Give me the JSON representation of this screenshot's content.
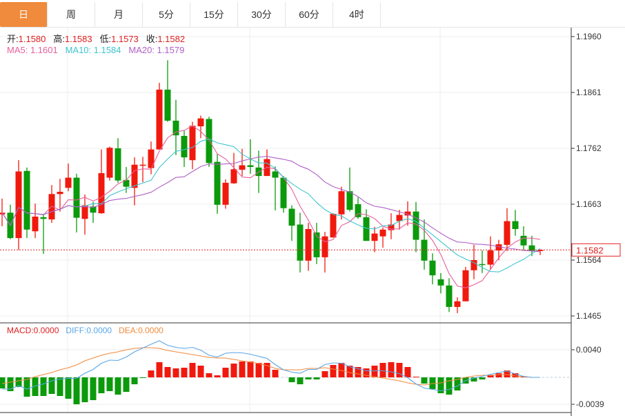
{
  "tabs": [
    {
      "label": "日",
      "active": true
    },
    {
      "label": "周"
    },
    {
      "label": "月"
    },
    {
      "label": "5分"
    },
    {
      "label": "15分"
    },
    {
      "label": "30分"
    },
    {
      "label": "60分"
    },
    {
      "label": "4时"
    }
  ],
  "ohlc_legend": {
    "open_label": "开:",
    "open": "1.1580",
    "high_label": "高:",
    "high": "1.1583",
    "low_label": "低:",
    "low": "1.1573",
    "close_label": "收:",
    "close": "1.1582"
  },
  "ma_legend": {
    "ma5": "MA5: 1.1601",
    "ma10": "MA10: 1.1584",
    "ma20": "MA20: 1.1579"
  },
  "macd_legend": {
    "macd": "MACD:0.0000",
    "diff": "DIFF:0.0000",
    "dea": "DEA:0.0000"
  },
  "colors": {
    "up": "#f0190e",
    "down": "#0b9a0b",
    "accent": "#f08a3c",
    "ma5": "#e6609c",
    "ma10": "#3fc4d0",
    "ma20": "#b060c6",
    "diff": "#5aa6e6",
    "dea": "#f08a3c",
    "last_price": "#e02020"
  },
  "chart_data": [
    {
      "type": "candlestick",
      "ylim": [
        1.1465,
        1.196
      ],
      "yticks": [
        "1.1960",
        "1.1861",
        "1.1762",
        "1.1663",
        "1.1564",
        "1.1465"
      ],
      "last_price": "1.1582",
      "grid": true,
      "ma_periods": [
        5,
        10,
        20
      ],
      "open": [
        1.1645,
        1.1648,
        1.1603,
        1.1722,
        1.1615,
        1.164,
        1.1636,
        1.1681,
        1.1692,
        1.171,
        1.1637,
        1.1659,
        1.1647,
        1.171,
        1.1762,
        1.1706,
        1.1692,
        1.1732,
        1.1727,
        1.176,
        1.1866,
        1.1811,
        1.1784,
        1.1741,
        1.1801,
        1.1814,
        1.1738,
        1.1662,
        1.17,
        1.1724,
        1.1732,
        1.1728,
        1.1713,
        1.1721,
        1.171,
        1.1655,
        1.1627,
        1.1563,
        1.1613,
        1.1569,
        1.1604,
        1.1645,
        1.1686,
        1.1663,
        1.164,
        1.1598,
        1.1606,
        1.1617,
        1.1633,
        1.1643,
        1.165,
        1.16,
        1.1563,
        1.153,
        1.1519,
        1.1481,
        1.1491,
        1.1546,
        1.1557,
        1.1556,
        1.1581,
        1.1591,
        1.1633,
        1.1607,
        1.159,
        1.158
      ],
      "high": [
        1.1673,
        1.1662,
        1.1741,
        1.1728,
        1.1664,
        1.1646,
        1.1697,
        1.1708,
        1.1735,
        1.1717,
        1.168,
        1.1667,
        1.176,
        1.1765,
        1.178,
        1.1729,
        1.1746,
        1.1747,
        1.1774,
        1.1878,
        1.1918,
        1.1848,
        1.1793,
        1.1809,
        1.182,
        1.1818,
        1.1752,
        1.1707,
        1.1754,
        1.1761,
        1.1778,
        1.1758,
        1.176,
        1.173,
        1.1713,
        1.1661,
        1.1648,
        1.163,
        1.163,
        1.1614,
        1.1647,
        1.1694,
        1.1728,
        1.1675,
        1.1654,
        1.1623,
        1.1622,
        1.1647,
        1.1653,
        1.1668,
        1.1667,
        1.1636,
        1.1576,
        1.1541,
        1.1532,
        1.1498,
        1.1552,
        1.1591,
        1.1581,
        1.1606,
        1.16,
        1.1656,
        1.1653,
        1.1624,
        1.1607,
        1.1583
      ],
      "low": [
        1.1624,
        1.1601,
        1.1582,
        1.1603,
        1.1603,
        1.1575,
        1.163,
        1.165,
        1.1686,
        1.1613,
        1.1609,
        1.163,
        1.1646,
        1.1705,
        1.1701,
        1.1683,
        1.1661,
        1.1702,
        1.1716,
        1.176,
        1.1809,
        1.175,
        1.1729,
        1.1725,
        1.178,
        1.1729,
        1.1646,
        1.1655,
        1.1699,
        1.1713,
        1.1717,
        1.1683,
        1.1713,
        1.1652,
        1.1648,
        1.1598,
        1.1542,
        1.1545,
        1.1557,
        1.1542,
        1.1604,
        1.1636,
        1.165,
        1.1637,
        1.1598,
        1.1578,
        1.1586,
        1.1601,
        1.1618,
        1.1625,
        1.1578,
        1.1547,
        1.1521,
        1.1505,
        1.1472,
        1.147,
        1.1491,
        1.153,
        1.1541,
        1.1547,
        1.1564,
        1.158,
        1.1607,
        1.1582,
        1.1571,
        1.1573
      ],
      "close": [
        1.1648,
        1.1603,
        1.1721,
        1.1618,
        1.1641,
        1.1637,
        1.1681,
        1.1685,
        1.171,
        1.1639,
        1.1661,
        1.1648,
        1.1718,
        1.1763,
        1.1705,
        1.1694,
        1.1733,
        1.1733,
        1.176,
        1.1866,
        1.1811,
        1.1785,
        1.1746,
        1.1802,
        1.1815,
        1.1736,
        1.1662,
        1.1701,
        1.1725,
        1.1732,
        1.1729,
        1.1713,
        1.1743,
        1.171,
        1.1656,
        1.1625,
        1.1563,
        1.1619,
        1.1569,
        1.1606,
        1.1646,
        1.1686,
        1.1653,
        1.164,
        1.1598,
        1.1611,
        1.1618,
        1.1627,
        1.1644,
        1.165,
        1.16,
        1.1563,
        1.1537,
        1.1519,
        1.1481,
        1.1491,
        1.1546,
        1.1564,
        1.1556,
        1.1581,
        1.1592,
        1.1633,
        1.1619,
        1.159,
        1.158,
        1.1582
      ]
    },
    {
      "type": "macd",
      "yticks": [
        "0.0040",
        "-0.0039"
      ],
      "macd": [
        -0.0016,
        -0.002,
        -0.0014,
        -0.0028,
        -0.0027,
        -0.0027,
        -0.0024,
        -0.0027,
        -0.0031,
        -0.0039,
        -0.0036,
        -0.0033,
        -0.0023,
        -0.002,
        -0.0025,
        -0.0021,
        -0.001,
        -0.0001,
        0.001,
        0.0022,
        0.0015,
        0.0013,
        0.0014,
        0.0021,
        0.0017,
        0.0006,
        0.0003,
        0.0014,
        0.002,
        0.0023,
        0.0023,
        0.0021,
        0.0021,
        0.0011,
        0.0,
        -0.0007,
        -0.001,
        -0.0003,
        -0.0003,
        0.0009,
        0.0018,
        0.0021,
        0.0017,
        0.0015,
        0.0013,
        0.0017,
        0.0021,
        0.0022,
        0.0021,
        0.0015,
        0.0001,
        -0.0009,
        -0.0017,
        -0.0023,
        -0.0025,
        -0.0019,
        -0.0009,
        -0.0006,
        -0.0003,
        0.0003,
        0.0006,
        0.001,
        0.0006,
        0.0001,
        0.0,
        0.0
      ],
      "dea": [
        -0.0009,
        -0.0007,
        -0.0005,
        -0.0003,
        0.0001,
        0.0004,
        0.0007,
        0.0011,
        0.0014,
        0.0018,
        0.0024,
        0.0028,
        0.0032,
        0.0035,
        0.0037,
        0.004,
        0.0042,
        0.0043,
        0.0043,
        0.0042,
        0.0039,
        0.0037,
        0.0035,
        0.0033,
        0.0031,
        0.0029,
        0.0028,
        0.0028,
        0.0026,
        0.0024,
        0.0022,
        0.002,
        0.0017,
        0.0013,
        0.0011,
        0.0011,
        0.0011,
        0.0013,
        0.0013,
        0.0014,
        0.0012,
        0.001,
        0.0007,
        0.0005,
        0.0003,
        0.0001,
        -0.0001,
        -0.0003,
        -0.0005,
        -0.0008,
        -0.001,
        -0.0011,
        -0.0009,
        -0.0008,
        -0.0005,
        -0.0003,
        0.0,
        0.0002,
        0.0003,
        0.0003,
        0.0004,
        0.0004,
        0.0002,
        0.0001,
        0.0,
        0.0
      ]
    }
  ]
}
